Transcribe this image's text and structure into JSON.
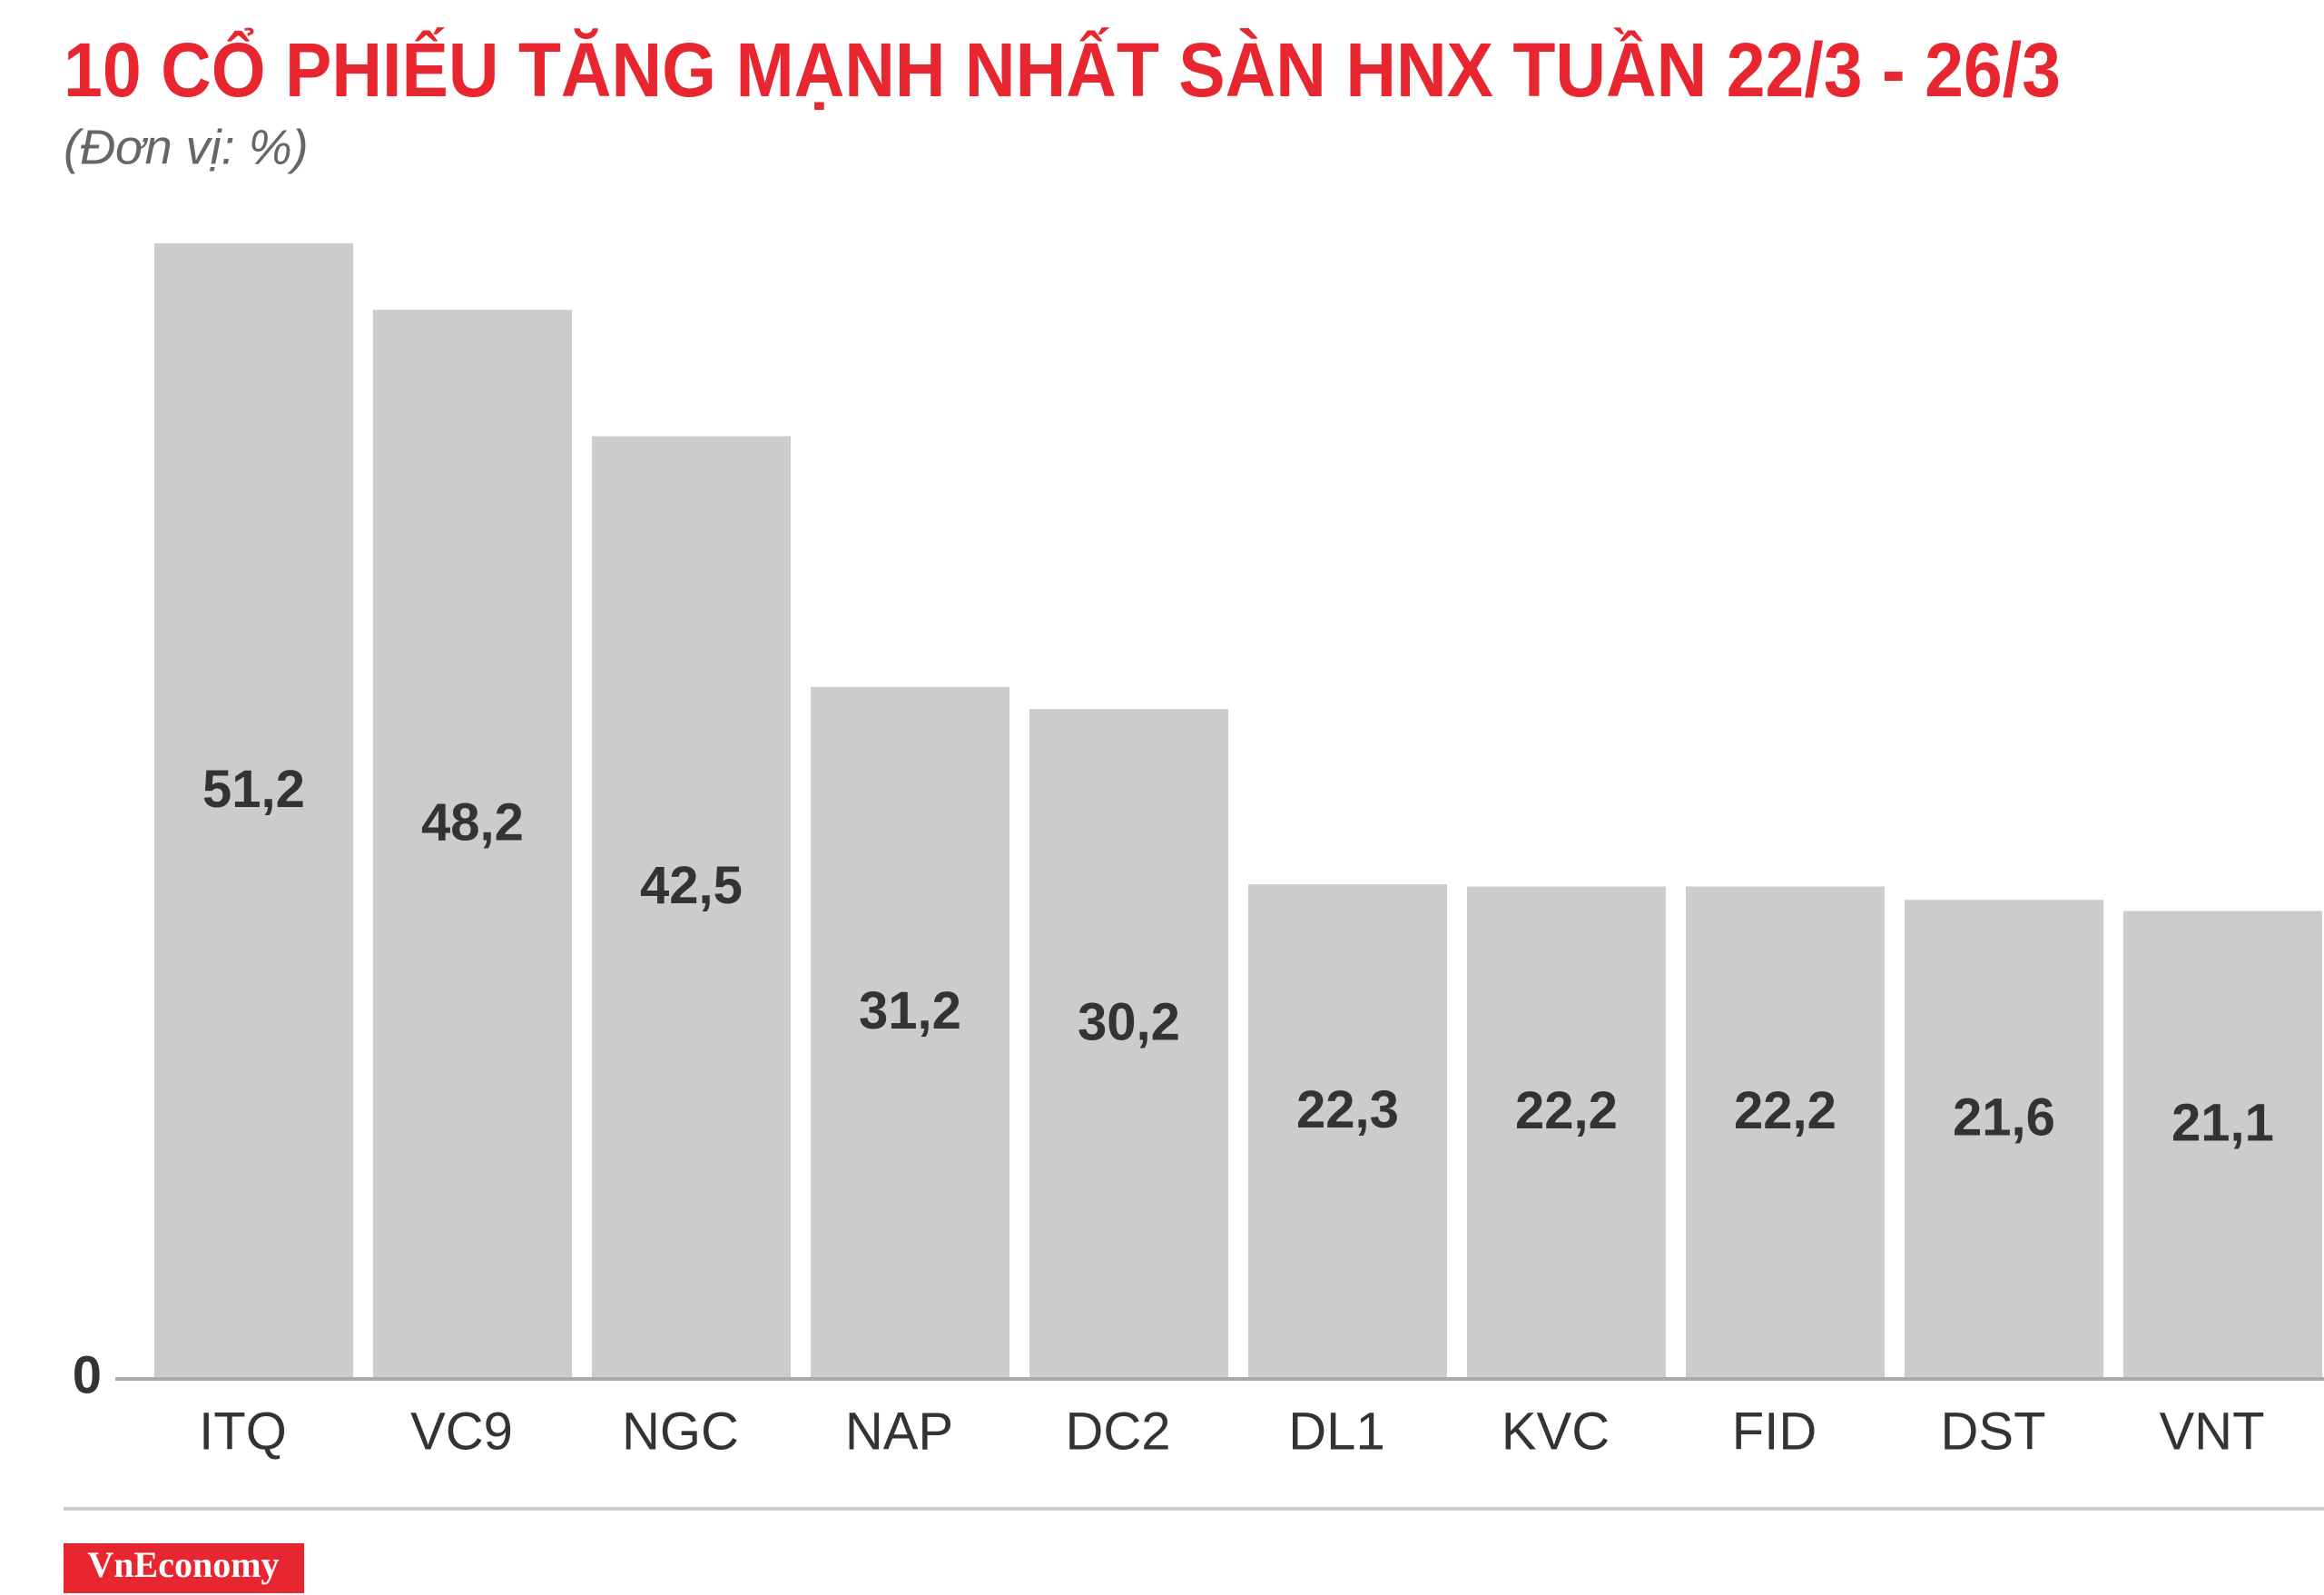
{
  "chart_data": {
    "type": "bar",
    "title": "10 CỔ PHIẾU TĂNG MẠNH NHẤT SÀN HNX TUẦN 22/3 - 26/3",
    "subtitle": "(Đơn vị: %)",
    "categories": [
      "ITQ",
      "VC9",
      "NGC",
      "NAP",
      "DC2",
      "DL1",
      "KVC",
      "FID",
      "DST",
      "VNT"
    ],
    "values": [
      51.2,
      48.2,
      42.5,
      31.2,
      30.2,
      22.3,
      22.2,
      22.2,
      21.6,
      21.1
    ],
    "value_labels": [
      "51,2",
      "48,2",
      "42,5",
      "31,2",
      "30,2",
      "22,3",
      "22,2",
      "22,2",
      "21,6",
      "21,1"
    ],
    "color": "#cccccc",
    "ylim": [
      0,
      51.2
    ],
    "yticks": [
      0
    ],
    "grid": false
  },
  "brand": "VnEconomy"
}
